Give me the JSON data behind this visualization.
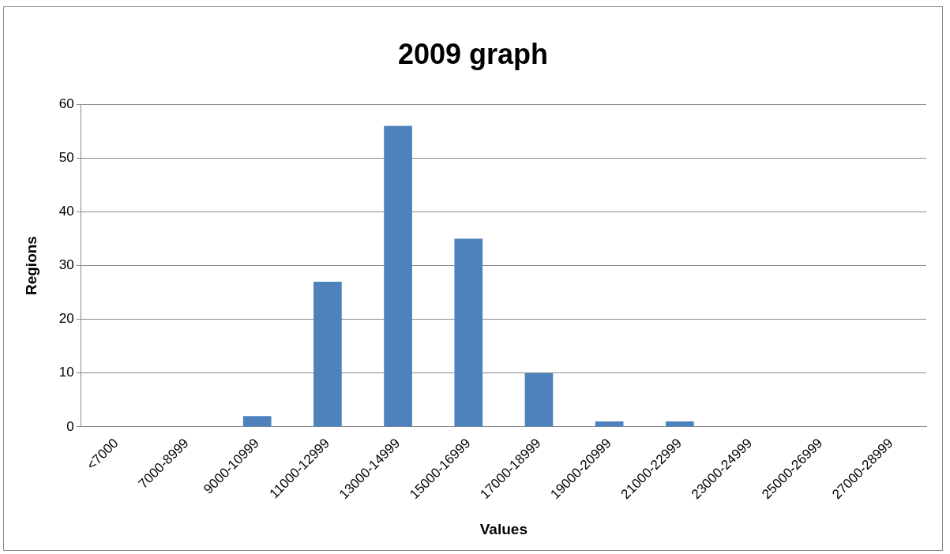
{
  "chart_data": {
    "type": "bar",
    "title": "2009 graph",
    "xlabel": "Values",
    "ylabel": "Regions",
    "categories": [
      "<7000",
      "7000-8999",
      "9000-10999",
      "11000-12999",
      "13000-14999",
      "15000-16999",
      "17000-18999",
      "19000-20999",
      "21000-22999",
      "23000-24999",
      "25000-26999",
      "27000-28999"
    ],
    "values": [
      0,
      0,
      2,
      27,
      56,
      35,
      10,
      1,
      1,
      0,
      0,
      0
    ],
    "color": "#4f81bd",
    "ylim": [
      0,
      60
    ],
    "yticks": [
      0,
      10,
      20,
      30,
      40,
      50,
      60
    ],
    "grid": "y",
    "legend": false
  }
}
